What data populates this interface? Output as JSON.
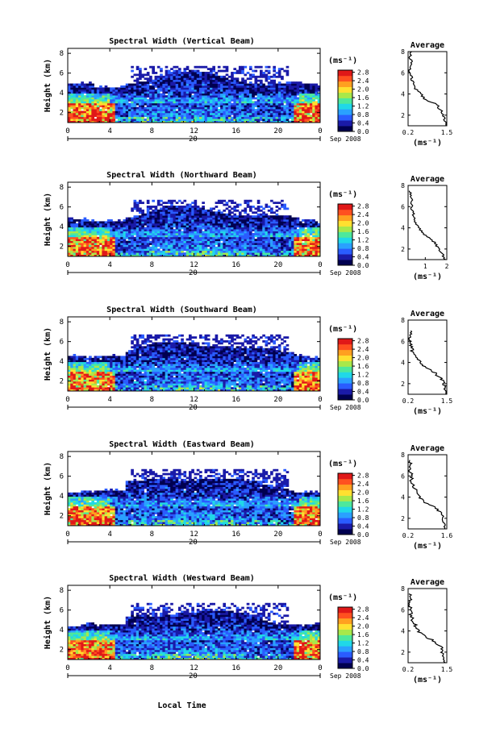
{
  "chart_data": {
    "type": "heatmap",
    "shared": {
      "xlabel": "Local Time",
      "x_ticks": [
        "0",
        "4",
        "8",
        "12",
        "16",
        "20",
        "0"
      ],
      "x_range_hours": [
        0,
        24
      ],
      "date_tick_label": "20",
      "date_label": "Sep 2008",
      "ylabel": "Height (km)",
      "y_ticks": [
        "2",
        "4",
        "6",
        "8"
      ],
      "y_range_km": [
        1,
        8.5
      ],
      "colorbar_unit": "(ms⁻¹)",
      "colorbar_ticks": [
        "0.0",
        "0.4",
        "0.8",
        "1.2",
        "1.6",
        "2.0",
        "2.4",
        "2.8"
      ],
      "colorbar_range": [
        0,
        2.9
      ],
      "colormap": [
        "#000050",
        "#1a1aa8",
        "#2a5cff",
        "#2aa0ff",
        "#20d8e8",
        "#4de89c",
        "#a8e84a",
        "#ffe030",
        "#ffa020",
        "#ff5020",
        "#e01818"
      ],
      "average_title": "Average",
      "average_ylabel": "(ms⁻¹)"
    },
    "panels": [
      {
        "title": "Spectral Width (Vertical Beam)",
        "average_x_ticks": [
          "0.2",
          "1.5"
        ],
        "average_x_range": [
          0.2,
          1.5
        ],
        "average_profile": [
          [
            1.0,
            1.5
          ],
          [
            1.5,
            1.45
          ],
          [
            2.0,
            1.35
          ],
          [
            2.5,
            1.3
          ],
          [
            3.0,
            1.15
          ],
          [
            3.5,
            0.8
          ],
          [
            4.0,
            0.6
          ],
          [
            4.5,
            0.45
          ],
          [
            5.0,
            0.35
          ],
          [
            5.5,
            0.3
          ],
          [
            6.0,
            0.28
          ],
          [
            6.5,
            0.25
          ],
          [
            7.0,
            0.3
          ],
          [
            7.5,
            0.25
          ],
          [
            8.0,
            0.3
          ]
        ]
      },
      {
        "title": "Spectral Width (Northward Beam)",
        "average_x_ticks": [
          "1",
          "2"
        ],
        "average_x_range": [
          0.2,
          2
        ],
        "average_profile": [
          [
            1.0,
            1.9
          ],
          [
            1.5,
            1.8
          ],
          [
            2.0,
            1.6
          ],
          [
            2.5,
            1.5
          ],
          [
            3.0,
            1.2
          ],
          [
            3.5,
            0.9
          ],
          [
            4.0,
            0.7
          ],
          [
            4.5,
            0.55
          ],
          [
            5.0,
            0.5
          ],
          [
            5.5,
            0.4
          ],
          [
            6.0,
            0.35
          ],
          [
            6.5,
            0.4
          ],
          [
            7.0,
            0.35
          ],
          [
            7.5,
            0.3
          ]
        ]
      },
      {
        "title": "Spectral Width (Southward Beam)",
        "average_x_ticks": [
          "0.2",
          "1.5"
        ],
        "average_x_range": [
          0.2,
          1.5
        ],
        "average_profile": [
          [
            1.0,
            1.5
          ],
          [
            1.5,
            1.45
          ],
          [
            2.0,
            1.4
          ],
          [
            2.5,
            1.3
          ],
          [
            3.0,
            1.1
          ],
          [
            3.5,
            0.8
          ],
          [
            4.0,
            0.6
          ],
          [
            4.5,
            0.45
          ],
          [
            5.0,
            0.35
          ],
          [
            5.5,
            0.3
          ],
          [
            6.0,
            0.28
          ],
          [
            6.5,
            0.25
          ],
          [
            7.0,
            0.3
          ]
        ]
      },
      {
        "title": "Spectral Width (Eastward Beam)",
        "average_x_ticks": [
          "0.2",
          "1.6"
        ],
        "average_x_range": [
          0.2,
          1.6
        ],
        "average_profile": [
          [
            1.0,
            1.55
          ],
          [
            1.5,
            1.5
          ],
          [
            2.0,
            1.45
          ],
          [
            2.5,
            1.4
          ],
          [
            3.0,
            1.2
          ],
          [
            3.5,
            0.8
          ],
          [
            4.0,
            0.6
          ],
          [
            4.5,
            0.5
          ],
          [
            5.0,
            0.4
          ],
          [
            5.5,
            0.3
          ],
          [
            6.0,
            0.35
          ],
          [
            6.5,
            0.25
          ],
          [
            7.0,
            0.3
          ],
          [
            7.5,
            0.25
          ]
        ]
      },
      {
        "title": "Spectral Width (Westward Beam)",
        "average_x_ticks": [
          "0.2",
          "1.5"
        ],
        "average_x_range": [
          0.2,
          1.5
        ],
        "average_profile": [
          [
            1.0,
            1.45
          ],
          [
            1.5,
            1.4
          ],
          [
            2.0,
            1.35
          ],
          [
            2.5,
            1.3
          ],
          [
            3.0,
            1.1
          ],
          [
            3.5,
            0.75
          ],
          [
            4.0,
            0.55
          ],
          [
            4.5,
            0.45
          ],
          [
            5.0,
            0.35
          ],
          [
            5.5,
            0.3
          ],
          [
            6.0,
            0.3
          ],
          [
            6.5,
            0.25
          ],
          [
            7.0,
            0.3
          ],
          [
            7.5,
            0.25
          ]
        ]
      }
    ]
  }
}
